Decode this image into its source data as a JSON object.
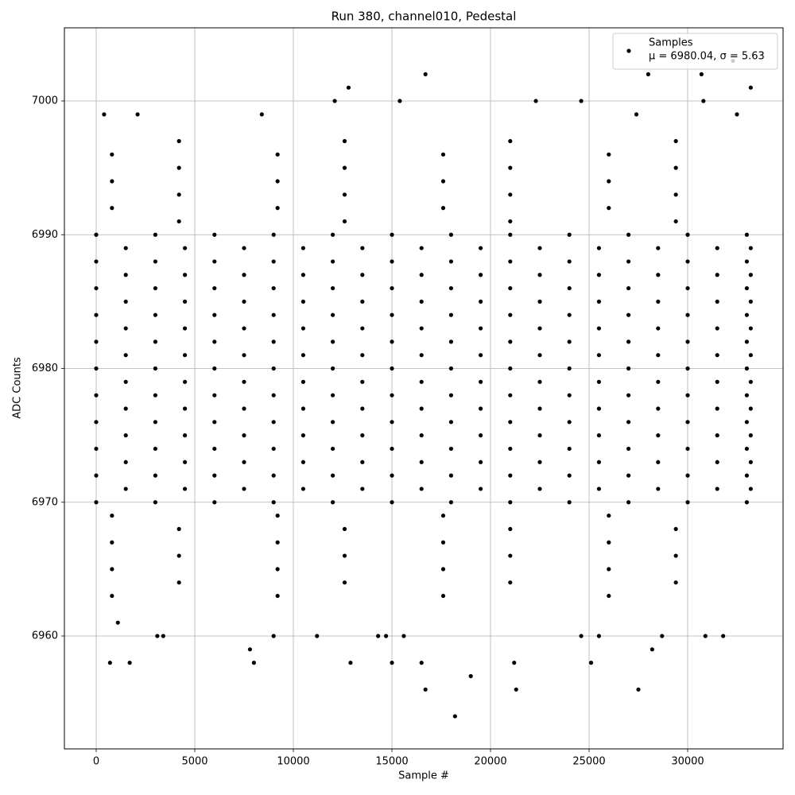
{
  "chart_data": {
    "type": "scatter",
    "title": "Run 380, channel010, Pedestal",
    "x_label": "Sample #",
    "y_label": "ADC Counts",
    "xlim": [
      -1613,
      34839
    ],
    "ylim": [
      6951.56,
      7005.47
    ],
    "xticks": [
      0,
      5000,
      10000,
      15000,
      20000,
      25000,
      30000
    ],
    "yticks": [
      6960,
      6970,
      6980,
      6990,
      7000
    ],
    "grid": true,
    "legend": "upper right",
    "series": [
      {
        "name": "Samples",
        "color": "#000000",
        "annotation": "μ = 6980.04, σ = 5.63",
        "x": [
          0,
          3000,
          6000,
          9000,
          12000,
          15000,
          18000,
          21000,
          24000,
          27000,
          30000,
          33000,
          1500,
          4500,
          7500,
          10500,
          13500,
          16500,
          19500,
          22500,
          25500,
          28500,
          31500,
          33200,
          0,
          3000,
          6000,
          9000,
          12000,
          15000,
          18000,
          21000,
          24000,
          27000,
          30000,
          33000,
          1500,
          4500,
          7500,
          10500,
          13500,
          16500,
          19500,
          22500,
          25500,
          28500,
          31500,
          33200,
          0,
          3000,
          6000,
          9000,
          12000,
          15000,
          18000,
          21000,
          24000,
          27000,
          30000,
          33000,
          1500,
          4500,
          7500,
          10500,
          13500,
          16500,
          19500,
          22500,
          25500,
          28500,
          31500,
          33200,
          0,
          3000,
          6000,
          9000,
          12000,
          15000,
          18000,
          21000,
          24000,
          27000,
          30000,
          33000,
          1500,
          4500,
          7500,
          10500,
          13500,
          16500,
          19500,
          22500,
          25500,
          28500,
          31500,
          33200,
          0,
          3000,
          6000,
          9000,
          12000,
          15000,
          18000,
          21000,
          24000,
          27000,
          30000,
          33000,
          1500,
          4500,
          7500,
          10500,
          13500,
          16500,
          19500,
          22500,
          25500,
          28500,
          31500,
          33200,
          0,
          3000,
          6000,
          9000,
          12000,
          15000,
          18000,
          21000,
          24000,
          27000,
          30000,
          33000,
          1500,
          4500,
          7500,
          10500,
          13500,
          16500,
          19500,
          22500,
          25500,
          28500,
          31500,
          33200,
          0,
          3000,
          6000,
          9000,
          12000,
          15000,
          18000,
          21000,
          24000,
          27000,
          30000,
          33000,
          1500,
          4500,
          7500,
          10500,
          13500,
          16500,
          19500,
          22500,
          25500,
          28500,
          31500,
          33200,
          0,
          3000,
          6000,
          9000,
          12000,
          15000,
          18000,
          21000,
          24000,
          27000,
          30000,
          33000,
          1500,
          4500,
          7500,
          10500,
          13500,
          16500,
          19500,
          22500,
          25500,
          28500,
          31500,
          33200,
          0,
          3000,
          6000,
          9000,
          12000,
          15000,
          18000,
          21000,
          24000,
          27000,
          30000,
          33000,
          1500,
          4500,
          7500,
          10500,
          13500,
          16500,
          19500,
          22500,
          25500,
          28500,
          31500,
          33200,
          0,
          3000,
          6000,
          9000,
          12000,
          15000,
          18000,
          21000,
          24000,
          27000,
          30000,
          33000,
          1500,
          4500,
          7500,
          10500,
          13500,
          16500,
          19500,
          22500,
          25500,
          28500,
          31500,
          33200,
          0,
          3000,
          6000,
          9000,
          12000,
          15000,
          18000,
          21000,
          24000,
          27000,
          30000,
          33000,
          800,
          9200,
          17600,
          26000,
          4200,
          12600,
          21000,
          29400,
          800,
          9200,
          17600,
          26000,
          4200,
          12600,
          21000,
          29400,
          800,
          9200,
          17600,
          26000,
          4200,
          12600,
          21000,
          29400,
          800,
          9200,
          17600,
          26000,
          4200,
          12600,
          21000,
          29400,
          800,
          9200,
          17600,
          26000,
          4200,
          12600,
          21000,
          29400,
          800,
          9200,
          17600,
          26000,
          4200,
          12600,
          21000,
          29400,
          800,
          9200,
          17600,
          26000,
          4200,
          12600,
          21000,
          29400,
          700,
          1700,
          3100,
          3400,
          1100,
          9000,
          7800,
          8000,
          11200,
          12900,
          14300,
          14700,
          15000,
          15600,
          16500,
          16700,
          18200,
          19000,
          21200,
          21300,
          24600,
          25100,
          25500,
          27500,
          28200,
          28700,
          30900,
          31800,
          12800,
          16700,
          30700,
          28000,
          33200,
          32300,
          12100,
          15400,
          22300,
          24600,
          30800,
          400,
          2100,
          8400,
          27400,
          32500
        ],
        "values": [
          6970,
          6970,
          6970,
          6970,
          6970,
          6970,
          6970,
          6970,
          6970,
          6970,
          6970,
          6970,
          6971,
          6971,
          6971,
          6971,
          6971,
          6971,
          6971,
          6971,
          6971,
          6971,
          6971,
          6971,
          6972,
          6972,
          6972,
          6972,
          6972,
          6972,
          6972,
          6972,
          6972,
          6972,
          6972,
          6972,
          6973,
          6973,
          6973,
          6973,
          6973,
          6973,
          6973,
          6973,
          6973,
          6973,
          6973,
          6973,
          6974,
          6974,
          6974,
          6974,
          6974,
          6974,
          6974,
          6974,
          6974,
          6974,
          6974,
          6974,
          6975,
          6975,
          6975,
          6975,
          6975,
          6975,
          6975,
          6975,
          6975,
          6975,
          6975,
          6975,
          6976,
          6976,
          6976,
          6976,
          6976,
          6976,
          6976,
          6976,
          6976,
          6976,
          6976,
          6976,
          6977,
          6977,
          6977,
          6977,
          6977,
          6977,
          6977,
          6977,
          6977,
          6977,
          6977,
          6977,
          6978,
          6978,
          6978,
          6978,
          6978,
          6978,
          6978,
          6978,
          6978,
          6978,
          6978,
          6978,
          6979,
          6979,
          6979,
          6979,
          6979,
          6979,
          6979,
          6979,
          6979,
          6979,
          6979,
          6979,
          6980,
          6980,
          6980,
          6980,
          6980,
          6980,
          6980,
          6980,
          6980,
          6980,
          6980,
          6980,
          6981,
          6981,
          6981,
          6981,
          6981,
          6981,
          6981,
          6981,
          6981,
          6981,
          6981,
          6981,
          6982,
          6982,
          6982,
          6982,
          6982,
          6982,
          6982,
          6982,
          6982,
          6982,
          6982,
          6982,
          6983,
          6983,
          6983,
          6983,
          6983,
          6983,
          6983,
          6983,
          6983,
          6983,
          6983,
          6983,
          6984,
          6984,
          6984,
          6984,
          6984,
          6984,
          6984,
          6984,
          6984,
          6984,
          6984,
          6984,
          6985,
          6985,
          6985,
          6985,
          6985,
          6985,
          6985,
          6985,
          6985,
          6985,
          6985,
          6985,
          6986,
          6986,
          6986,
          6986,
          6986,
          6986,
          6986,
          6986,
          6986,
          6986,
          6986,
          6986,
          6987,
          6987,
          6987,
          6987,
          6987,
          6987,
          6987,
          6987,
          6987,
          6987,
          6987,
          6987,
          6988,
          6988,
          6988,
          6988,
          6988,
          6988,
          6988,
          6988,
          6988,
          6988,
          6988,
          6988,
          6989,
          6989,
          6989,
          6989,
          6989,
          6989,
          6989,
          6989,
          6989,
          6989,
          6989,
          6989,
          6990,
          6990,
          6990,
          6990,
          6990,
          6990,
          6990,
          6990,
          6990,
          6990,
          6990,
          6990,
          6963,
          6963,
          6963,
          6963,
          6964,
          6964,
          6964,
          6964,
          6965,
          6965,
          6965,
          6965,
          6966,
          6966,
          6966,
          6966,
          6967,
          6967,
          6967,
          6967,
          6968,
          6968,
          6968,
          6968,
          6969,
          6969,
          6969,
          6969,
          6991,
          6991,
          6991,
          6991,
          6992,
          6992,
          6992,
          6992,
          6993,
          6993,
          6993,
          6993,
          6994,
          6994,
          6994,
          6994,
          6995,
          6995,
          6995,
          6995,
          6996,
          6996,
          6996,
          6996,
          6997,
          6997,
          6997,
          6997,
          6958,
          6958,
          6960,
          6960,
          6961,
          6960,
          6959,
          6958,
          6960,
          6958,
          6960,
          6960,
          6958,
          6960,
          6958,
          6956,
          6954,
          6957,
          6958,
          6956,
          6960,
          6958,
          6960,
          6956,
          6959,
          6960,
          6960,
          6960,
          7001,
          7002,
          7002,
          7002,
          7001,
          7003,
          7000,
          7000,
          7000,
          7000,
          7000,
          6999,
          6999,
          6999,
          6999,
          6999
        ]
      }
    ]
  }
}
